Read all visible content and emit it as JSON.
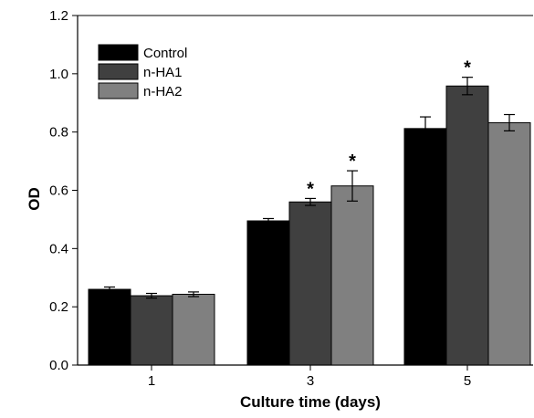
{
  "chart_data": {
    "type": "bar",
    "title": "",
    "xlabel": "Culture time (days)",
    "ylabel": "OD",
    "categories": [
      "1",
      "3",
      "5"
    ],
    "ylim": [
      0.0,
      1.2
    ],
    "yticks": [
      "0.0",
      "0.2",
      "0.4",
      "0.6",
      "0.8",
      "1.0",
      "1.2"
    ],
    "grid": false,
    "legend_position": "top-left",
    "series": [
      {
        "name": "Control",
        "color": "#000000",
        "values": [
          0.26,
          0.495,
          0.812
        ],
        "errors": [
          0.008,
          0.008,
          0.04
        ],
        "significant": [
          false,
          false,
          false
        ]
      },
      {
        "name": "n-HA1",
        "color": "#404040",
        "values": [
          0.238,
          0.56,
          0.958
        ],
        "errors": [
          0.008,
          0.012,
          0.03
        ],
        "significant": [
          false,
          true,
          true
        ]
      },
      {
        "name": "n-HA2",
        "color": "#808080",
        "values": [
          0.243,
          0.615,
          0.832
        ],
        "errors": [
          0.008,
          0.052,
          0.028
        ],
        "significant": [
          false,
          true,
          false
        ]
      }
    ],
    "significance_marker": "*"
  }
}
